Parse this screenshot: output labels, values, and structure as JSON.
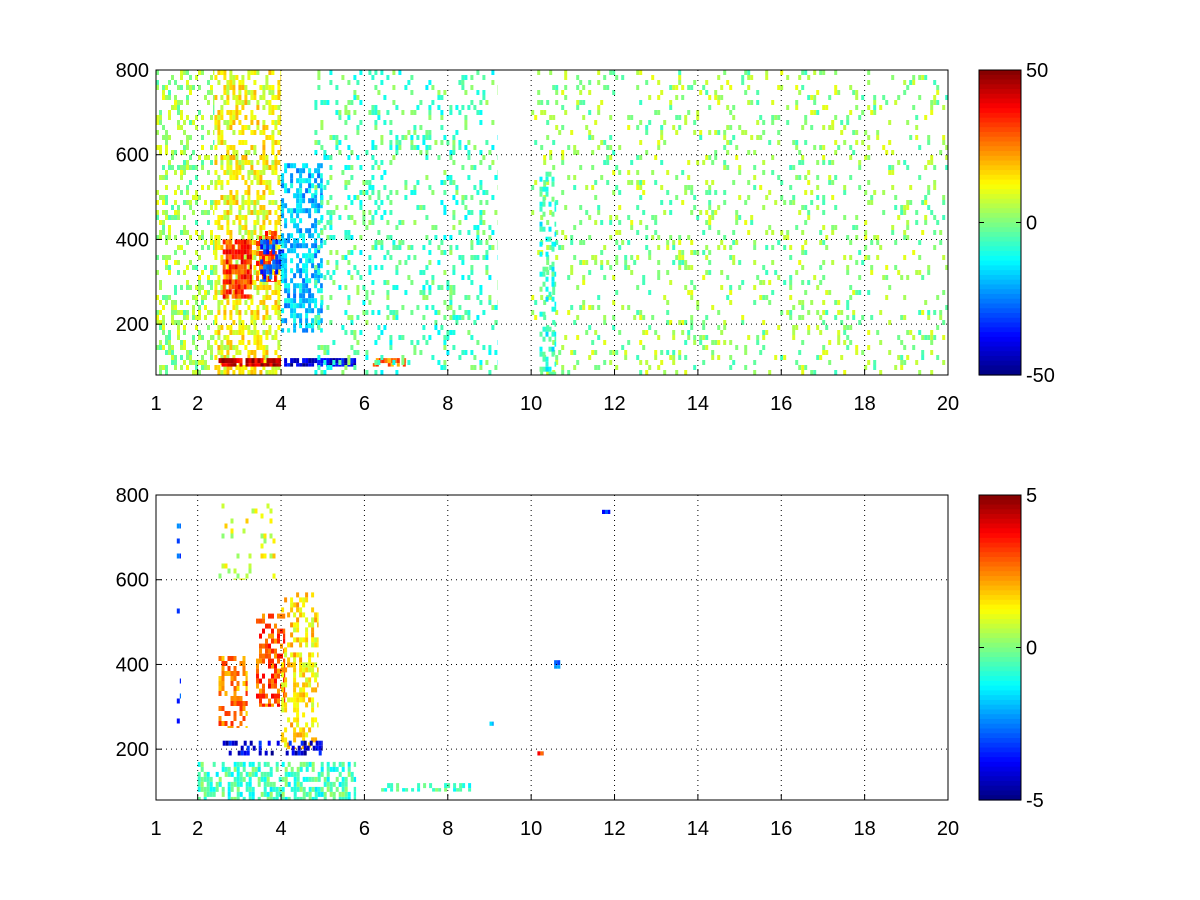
{
  "chart_data": [
    {
      "type": "heatmap",
      "title": "",
      "xlabel": "",
      "ylabel": "",
      "xlim": [
        1,
        20
      ],
      "ylim": [
        80,
        800
      ],
      "x_ticks": [
        1,
        2,
        4,
        6,
        8,
        10,
        12,
        14,
        16,
        18,
        20
      ],
      "x_tick_labels": [
        "1",
        "2",
        "4",
        "6",
        "8",
        "10",
        "12",
        "14",
        "16",
        "18",
        "20"
      ],
      "y_ticks": [
        200,
        400,
        600,
        800
      ],
      "y_tick_labels": [
        "200",
        "400",
        "600",
        "800"
      ],
      "grid": true,
      "colormap": "jet",
      "clim": [
        -50,
        50
      ],
      "colorbar_ticks": [
        50,
        0,
        -50
      ],
      "colorbar_tick_labels": [
        "50",
        "0",
        "-50"
      ],
      "features": [
        {
          "x": [
            2.4,
            4.0
          ],
          "y": [
            80,
            800
          ],
          "value": 12,
          "density": 0.5
        },
        {
          "x": [
            2.6,
            3.3
          ],
          "y": [
            260,
            400
          ],
          "value": 32,
          "density": 0.85
        },
        {
          "x": [
            3.4,
            3.9
          ],
          "y": [
            300,
            420
          ],
          "value": 28,
          "density": 0.7
        },
        {
          "x": [
            3.5,
            4.1
          ],
          "y": [
            300,
            400
          ],
          "value": -30,
          "density": 0.6
        },
        {
          "x": [
            4.0,
            5.0
          ],
          "y": [
            180,
            580
          ],
          "value": -18,
          "density": 0.55
        },
        {
          "x": [
            2.5,
            4.0
          ],
          "y": [
            100,
            120
          ],
          "value": 42,
          "density": 0.9
        },
        {
          "x": [
            4.0,
            5.8
          ],
          "y": [
            100,
            120
          ],
          "value": -42,
          "density": 0.9
        },
        {
          "x": [
            6.2,
            7.0
          ],
          "y": [
            100,
            120
          ],
          "value": 25,
          "density": 0.6
        },
        {
          "x": [
            1.0,
            2.4
          ],
          "y": [
            80,
            800
          ],
          "value": 3,
          "density": 0.3
        },
        {
          "x": [
            4.8,
            9.2
          ],
          "y": [
            80,
            800
          ],
          "value": -5,
          "density": 0.18
        },
        {
          "x": [
            10.0,
            20.0
          ],
          "y": [
            80,
            800
          ],
          "value": 2,
          "density": 0.14
        },
        {
          "x": [
            10.2,
            10.6
          ],
          "y": [
            80,
            560
          ],
          "value": -8,
          "density": 0.35
        }
      ]
    },
    {
      "type": "heatmap",
      "title": "",
      "xlabel": "",
      "ylabel": "",
      "xlim": [
        1,
        20
      ],
      "ylim": [
        80,
        800
      ],
      "x_ticks": [
        1,
        2,
        4,
        6,
        8,
        10,
        12,
        14,
        16,
        18,
        20
      ],
      "x_tick_labels": [
        "1",
        "2",
        "4",
        "6",
        "8",
        "10",
        "12",
        "14",
        "16",
        "18",
        "20"
      ],
      "y_ticks": [
        200,
        400,
        600,
        800
      ],
      "y_tick_labels": [
        "200",
        "400",
        "600",
        "800"
      ],
      "grid": true,
      "colormap": "jet",
      "clim": [
        -5,
        5
      ],
      "colorbar_ticks": [
        5,
        0,
        -5
      ],
      "colorbar_tick_labels": [
        "5",
        "0",
        "-5"
      ],
      "features": [
        {
          "x": [
            2.5,
            3.2
          ],
          "y": [
            250,
            420
          ],
          "value": 2.5,
          "density": 0.5
        },
        {
          "x": [
            3.4,
            4.1
          ],
          "y": [
            300,
            520
          ],
          "value": 3.0,
          "density": 0.55
        },
        {
          "x": [
            4.0,
            4.9
          ],
          "y": [
            200,
            570
          ],
          "value": 1.5,
          "density": 0.4
        },
        {
          "x": [
            2.6,
            5.0
          ],
          "y": [
            185,
            220
          ],
          "value": -4.0,
          "density": 0.45
        },
        {
          "x": [
            2.0,
            5.8
          ],
          "y": [
            80,
            170
          ],
          "value": -0.6,
          "density": 0.55
        },
        {
          "x": [
            6.4,
            8.6
          ],
          "y": [
            100,
            120
          ],
          "value": -0.5,
          "density": 0.4
        },
        {
          "x": [
            2.5,
            3.9
          ],
          "y": [
            600,
            780
          ],
          "value": 1.0,
          "density": 0.12
        },
        {
          "x": [
            1.5,
            1.6
          ],
          "y": [
            250,
            780
          ],
          "value": -3.0,
          "density": 0.1
        },
        {
          "x": [
            10.55,
            10.7
          ],
          "y": [
            390,
            410
          ],
          "value": -2.5,
          "density": 1.0
        },
        {
          "x": [
            11.7,
            11.9
          ],
          "y": [
            755,
            765
          ],
          "value": -3.5,
          "density": 1.0
        },
        {
          "x": [
            9.0,
            9.1
          ],
          "y": [
            255,
            265
          ],
          "value": -1.5,
          "density": 1.0
        },
        {
          "x": [
            10.15,
            10.3
          ],
          "y": [
            185,
            195
          ],
          "value": 3.5,
          "density": 1.0
        }
      ]
    }
  ]
}
